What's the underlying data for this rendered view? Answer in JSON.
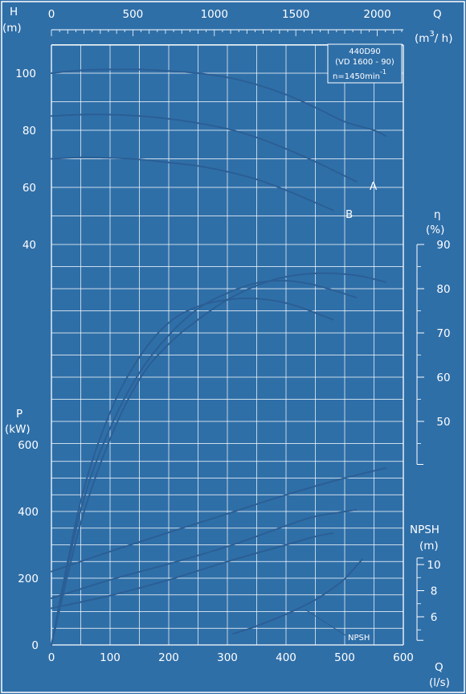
{
  "colors": {
    "background": "#2f6fa8",
    "ink": "#ffffff",
    "curve": "#2b5f95"
  },
  "labels": {
    "h_title": "H",
    "h_unit": "(m)",
    "q_top_title": "Q",
    "q_top_unit_a": "(m",
    "q_top_unit_sup": "3",
    "q_top_unit_b": "/ h)",
    "eta_title": "η",
    "eta_unit": "(%)",
    "p_title": "P",
    "p_unit": "(kW)",
    "npsh_title": "NPSH",
    "npsh_unit": "(m)",
    "q_bottom_title": "Q",
    "q_bottom_unit": "(l/s)",
    "legend_line1": "440D90",
    "legend_line2": "(VD 1600 - 90)",
    "legend_line3": "n=1450min",
    "legend_line3_sup": "-1",
    "curve_a": "A",
    "curve_b": "B",
    "npsh_label": "NPSH"
  },
  "chart_data": {
    "type": "line",
    "title": "440D90 (VD 1600 - 90) n=1450min-1",
    "x_axis": {
      "label": "Q (l/s)",
      "range": [
        0,
        600
      ],
      "ticks": [
        0,
        100,
        200,
        300,
        400,
        500,
        600
      ]
    },
    "x2_axis": {
      "label": "Q (m3/h)",
      "range": [
        0,
        2160
      ],
      "ticks": [
        0,
        500,
        1000,
        1500,
        2000
      ]
    },
    "head_axis": {
      "label": "H (m)",
      "range": [
        30,
        112
      ],
      "ticks": [
        40,
        60,
        80,
        100
      ]
    },
    "eff_axis": {
      "label": "η (%)",
      "range": [
        45,
        90
      ],
      "ticks": [
        50,
        60,
        70,
        80,
        90
      ]
    },
    "power_axis": {
      "label": "P (kW)",
      "range": [
        0,
        600
      ],
      "ticks": [
        0,
        200,
        400,
        600
      ]
    },
    "npsh_axis": {
      "label": "NPSH (m)",
      "range": [
        4,
        10
      ],
      "ticks": [
        6,
        8,
        10
      ]
    },
    "grid": true,
    "series": [
      {
        "name": "",
        "group": "head",
        "x": [
          0,
          50,
          100,
          150,
          200,
          250,
          300,
          350,
          400,
          450,
          500,
          550,
          570
        ],
        "y": [
          100,
          101,
          101.3,
          101.3,
          100.8,
          100,
          98.5,
          96,
          92.5,
          88,
          83,
          80,
          78
        ]
      },
      {
        "name": "A",
        "group": "head",
        "x": [
          0,
          50,
          100,
          150,
          200,
          250,
          300,
          350,
          400,
          450,
          520
        ],
        "y": [
          85,
          85.5,
          85.5,
          85,
          84,
          82.5,
          80.5,
          77.5,
          73.5,
          69,
          62
        ]
      },
      {
        "name": "B",
        "group": "head",
        "x": [
          0,
          50,
          100,
          150,
          200,
          250,
          300,
          350,
          400,
          480
        ],
        "y": [
          70,
          70.5,
          70.3,
          69.8,
          68.7,
          67.5,
          65.5,
          62.8,
          59,
          52
        ]
      },
      {
        "name": "",
        "group": "efficiency",
        "x": [
          0,
          50,
          100,
          150,
          200,
          250,
          300,
          340,
          380,
          420,
          480
        ],
        "y": [
          0,
          32,
          52,
          64.5,
          72.3,
          76,
          77.5,
          77.8,
          77.3,
          76,
          73
        ]
      },
      {
        "name": "",
        "group": "efficiency",
        "x": [
          0,
          50,
          100,
          150,
          200,
          250,
          300,
          350,
          400,
          450,
          520
        ],
        "y": [
          0,
          30,
          48.5,
          61,
          69.5,
          75.5,
          79,
          81.3,
          81.8,
          80.8,
          78
        ]
      },
      {
        "name": "",
        "group": "efficiency",
        "x": [
          0,
          50,
          100,
          150,
          200,
          250,
          300,
          350,
          400,
          460,
          520,
          570
        ],
        "y": [
          0,
          27,
          46,
          59.5,
          67.5,
          73,
          77.5,
          80.7,
          82.7,
          83.5,
          83,
          81.5
        ]
      },
      {
        "name": "",
        "group": "power",
        "x": [
          0,
          100,
          200,
          300,
          400,
          500,
          570
        ],
        "y": [
          220,
          280,
          337,
          393,
          450,
          500,
          530
        ]
      },
      {
        "name": "",
        "group": "power",
        "x": [
          0,
          100,
          200,
          300,
          400,
          450,
          520
        ],
        "y": [
          140,
          195,
          243,
          295,
          357,
          385,
          405
        ]
      },
      {
        "name": "",
        "group": "power",
        "x": [
          0,
          100,
          200,
          300,
          400,
          450,
          480
        ],
        "y": [
          110,
          148,
          195,
          250,
          300,
          325,
          335
        ]
      },
      {
        "name": "NPSH",
        "group": "npsh",
        "x": [
          310,
          350,
          400,
          450,
          480,
          500,
          530
        ],
        "y": [
          4.7,
          5.3,
          6.2,
          7.3,
          8.2,
          8.9,
          10.4
        ]
      }
    ]
  }
}
